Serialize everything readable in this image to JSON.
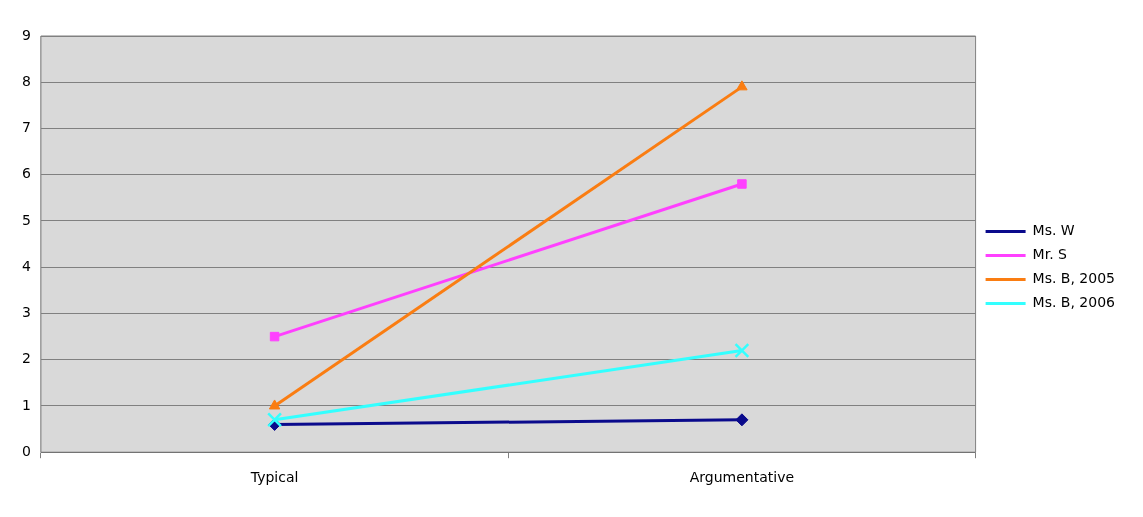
{
  "chart_data": {
    "type": "line",
    "categories": [
      "Typical",
      "Argumentative"
    ],
    "series": [
      {
        "name": "Ms. W",
        "color": "#0a0a8c",
        "values": [
          0.6,
          0.7
        ],
        "marker": "diamond"
      },
      {
        "name": "Mr. S",
        "color": "#ff40ff",
        "values": [
          2.5,
          5.8
        ],
        "marker": "square"
      },
      {
        "name": "Ms. B, 2005",
        "color": "#fa7d12",
        "values": [
          1.0,
          7.9
        ],
        "marker": "triangle"
      },
      {
        "name": "Ms. B, 2006",
        "color": "#33ffff",
        "values": [
          0.7,
          2.2
        ],
        "marker": "cross"
      }
    ],
    "ylim": [
      0,
      9
    ],
    "yticks": [
      0,
      1,
      2,
      3,
      4,
      5,
      6,
      7,
      8,
      9
    ],
    "grid": "y",
    "legend": "right"
  }
}
